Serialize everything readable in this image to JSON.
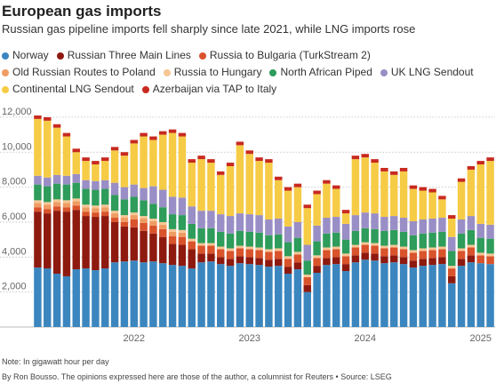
{
  "chart_data": {
    "type": "stacked_bar",
    "title": "European gas imports",
    "subtitle": "Russian gas pipeline imports fell sharply since late 2021, while LNG imports rose",
    "note": "Note: In gigawatt hour per day",
    "source": "By Ron Bousso. The opinions expressed here are those of the author, a columnist for Reuters • Source: LSEG",
    "categories": [
      null,
      null,
      null,
      null,
      null,
      null,
      null,
      null,
      null,
      null,
      "2022",
      null,
      null,
      null,
      null,
      null,
      null,
      null,
      null,
      null,
      null,
      null,
      "2023",
      null,
      null,
      null,
      null,
      null,
      null,
      null,
      null,
      null,
      null,
      null,
      "2024",
      null,
      null,
      null,
      null,
      null,
      null,
      null,
      null,
      null,
      null,
      null,
      "2025",
      null
    ],
    "ylim": [
      0,
      12300
    ],
    "yticks": [
      {
        "value": 2000,
        "label": "2,000"
      },
      {
        "value": 4000,
        "label": "4,000"
      },
      {
        "value": 6000,
        "label": "6,000"
      },
      {
        "value": 8000,
        "label": "8,000"
      },
      {
        "value": 10000,
        "label": "10,000"
      },
      {
        "value": 12000,
        "label": "12,000"
      }
    ],
    "grid": true,
    "series": [
      {
        "name": "Norway",
        "color": "#3b86bf",
        "values": [
          3400,
          3350,
          3050,
          2900,
          3300,
          3350,
          3250,
          3350,
          3700,
          3750,
          3800,
          3700,
          3750,
          3650,
          3550,
          3500,
          3350,
          3700,
          3750,
          3600,
          3500,
          3650,
          3600,
          3550,
          3450,
          3500,
          3050,
          3300,
          2000,
          3100,
          3550,
          3600,
          3200,
          3700,
          3850,
          3800,
          3650,
          3700,
          3600,
          3400,
          3500,
          3550,
          3600,
          2500,
          3500,
          3700,
          3650,
          3600
        ]
      },
      {
        "name": "Russian Three Main Lines",
        "color": "#8e1a0f",
        "values": [
          3200,
          3150,
          3600,
          3700,
          3400,
          3000,
          3050,
          3000,
          2300,
          2000,
          1900,
          1800,
          1600,
          1500,
          1200,
          1200,
          1100,
          500,
          450,
          400,
          400,
          400,
          400,
          400,
          400,
          400,
          400,
          400,
          400,
          400,
          400,
          400,
          400,
          400,
          400,
          400,
          400,
          400,
          400,
          400,
          400,
          400,
          400,
          400,
          400,
          400,
          0,
          0
        ]
      },
      {
        "name": "Russia to Bulgaria (TurkStream 2)",
        "color": "#d9532b",
        "values": [
          250,
          250,
          250,
          250,
          250,
          250,
          250,
          250,
          250,
          250,
          450,
          450,
          450,
          450,
          450,
          450,
          450,
          450,
          450,
          450,
          450,
          450,
          450,
          450,
          450,
          450,
          450,
          450,
          450,
          450,
          450,
          450,
          450,
          450,
          450,
          450,
          450,
          450,
          450,
          450,
          450,
          450,
          450,
          450,
          450,
          450,
          450,
          450
        ]
      },
      {
        "name": "Old Russian Routes to Poland",
        "color": "#ef9c63",
        "values": [
          250,
          250,
          250,
          250,
          250,
          250,
          250,
          250,
          250,
          250,
          250,
          250,
          250,
          250,
          250,
          250,
          0,
          0,
          0,
          0,
          0,
          0,
          0,
          0,
          0,
          0,
          0,
          0,
          0,
          0,
          0,
          0,
          0,
          0,
          0,
          0,
          0,
          0,
          0,
          0,
          0,
          0,
          0,
          0,
          0,
          0,
          0,
          0
        ]
      },
      {
        "name": "Russia to Hungary",
        "color": "#f6c694",
        "values": [
          150,
          150,
          150,
          150,
          150,
          150,
          150,
          150,
          150,
          150,
          150,
          150,
          150,
          150,
          150,
          150,
          150,
          150,
          150,
          150,
          150,
          150,
          150,
          150,
          150,
          150,
          150,
          150,
          150,
          150,
          150,
          150,
          150,
          150,
          150,
          150,
          150,
          150,
          150,
          150,
          150,
          150,
          150,
          150,
          150,
          150,
          150,
          150
        ]
      },
      {
        "name": "North African Piped",
        "color": "#2e9c5a",
        "values": [
          900,
          900,
          900,
          900,
          900,
          900,
          900,
          900,
          900,
          900,
          900,
          900,
          850,
          850,
          850,
          850,
          850,
          850,
          850,
          850,
          850,
          850,
          850,
          850,
          800,
          800,
          800,
          800,
          800,
          800,
          800,
          800,
          800,
          800,
          800,
          800,
          850,
          850,
          850,
          850,
          850,
          850,
          850,
          850,
          850,
          850,
          850,
          850
        ]
      },
      {
        "name": "UK LNG Sendout",
        "color": "#9a8ec6",
        "values": [
          500,
          500,
          500,
          500,
          500,
          500,
          500,
          500,
          700,
          700,
          700,
          700,
          1000,
          1000,
          1000,
          1000,
          1000,
          1000,
          1000,
          1000,
          1000,
          1000,
          1000,
          1000,
          900,
          900,
          900,
          900,
          900,
          900,
          900,
          900,
          900,
          900,
          900,
          900,
          800,
          800,
          800,
          800,
          800,
          800,
          800,
          800,
          800,
          800,
          800,
          800
        ]
      },
      {
        "name": "Continental LNG Sendout",
        "color": "#f6cb45",
        "values": [
          3250,
          3250,
          2700,
          2250,
          1250,
          1100,
          950,
          1100,
          1850,
          1800,
          2350,
          2950,
          2650,
          3150,
          3650,
          3500,
          2500,
          2950,
          2750,
          2250,
          2850,
          3900,
          3450,
          3100,
          3250,
          2200,
          2050,
          2000,
          2100,
          1800,
          1950,
          1600,
          600,
          3200,
          3150,
          2900,
          2600,
          2350,
          2650,
          1850,
          1650,
          1500,
          1050,
          1050,
          2150,
          2650,
          3400,
          3650
        ]
      },
      {
        "name": "Azerbaijan via TAP to Italy",
        "color": "#c8291f",
        "values": [
          200,
          200,
          200,
          200,
          200,
          200,
          200,
          200,
          200,
          200,
          200,
          200,
          200,
          200,
          200,
          200,
          200,
          200,
          200,
          200,
          200,
          200,
          200,
          200,
          200,
          200,
          200,
          200,
          200,
          200,
          200,
          200,
          200,
          200,
          200,
          200,
          200,
          200,
          200,
          200,
          200,
          200,
          200,
          200,
          200,
          200,
          200,
          200
        ]
      }
    ]
  }
}
